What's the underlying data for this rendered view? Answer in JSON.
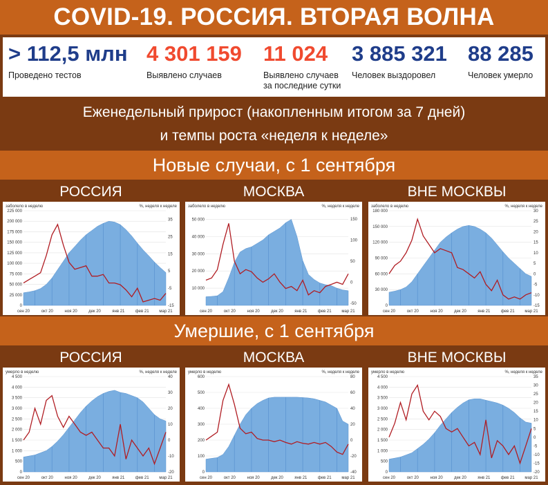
{
  "title": "COVID-19. РОССИЯ. ВТОРАЯ ВОЛНА",
  "stats": [
    {
      "value": "> 112,5 млн",
      "label": "Проведено тестов",
      "label2": "",
      "color": "#1f3d8a"
    },
    {
      "value": "4 301 159",
      "label": "Выявлено случаев",
      "label2": "",
      "color": "#f04a2f"
    },
    {
      "value": "11 024",
      "label": "Выявлено случаев",
      "label2": "за последние сутки",
      "color": "#f04a2f"
    },
    {
      "value": "3 885 321",
      "label": "Человек выздоровел",
      "label2": "",
      "color": "#1f3d8a"
    },
    {
      "value": "88 285",
      "label": "Человек умерло",
      "label2": "",
      "color": "#1f3d8a"
    }
  ],
  "subtitle_line1": "Еженедельный прирост (накопленным итогом за 7 дней)",
  "subtitle_line2": "и темпы роста «неделя к неделе»",
  "section_cases": "Новые случаи, с 1 сентября",
  "section_deaths": "Умершие, с 1 сентября",
  "region_headers": [
    "РОССИЯ",
    "МОСКВА",
    "ВНЕ МОСКВЫ"
  ],
  "colors": {
    "area": "#7aaee0",
    "line": "#b01c22",
    "orange": "#c5621b",
    "brown": "#7a3a12"
  },
  "chart_data": [
    {
      "type": "area",
      "region": "РОССИЯ",
      "metric": "cases",
      "left_label": "заболело в неделю",
      "right_label": "%, неделя к неделе",
      "x_ticks": [
        "сен 20",
        "окт 20",
        "ноя 20",
        "дек 20",
        "янв 21",
        "фев 21",
        "мар 21"
      ],
      "ylim": [
        0,
        225000
      ],
      "y_ticks": [
        "225 000",
        "200 000",
        "175 000",
        "150 000",
        "125 000",
        "100 000",
        "75 000",
        "50 000",
        "25 000",
        "0"
      ],
      "y_tick_values": [
        225000,
        200000,
        175000,
        150000,
        125000,
        100000,
        75000,
        50000,
        25000,
        0
      ],
      "y2lim": [
        -15,
        40
      ],
      "y2_ticks": [
        "35",
        "25",
        "15",
        "5",
        "-5",
        "-15"
      ],
      "y2_tick_values": [
        35,
        25,
        15,
        5,
        -5,
        -15
      ],
      "series": [
        {
          "kind": "area",
          "values": [
            30000,
            32000,
            35000,
            40000,
            50000,
            65000,
            85000,
            105000,
            125000,
            140000,
            155000,
            168000,
            178000,
            188000,
            195000,
            200000,
            198000,
            192000,
            180000,
            165000,
            148000,
            132000,
            118000,
            103000,
            90000,
            78000
          ]
        },
        {
          "kind": "line",
          "values": [
            -2,
            0,
            2,
            4,
            14,
            26,
            32,
            20,
            10,
            6,
            7,
            8,
            2,
            2,
            3,
            -2,
            -2,
            -3,
            -6,
            -10,
            -5,
            -13,
            -12,
            -11,
            -12,
            -8
          ]
        }
      ]
    },
    {
      "type": "area",
      "region": "МОСКВА",
      "metric": "cases",
      "left_label": "заболело в неделю",
      "right_label": "%, неделя к неделе",
      "x_ticks": [
        "сен 20",
        "окт 20",
        "ноя 20",
        "дек 20",
        "янв 21",
        "фев 21",
        "мар 21"
      ],
      "ylim": [
        0,
        55000
      ],
      "y_ticks": [
        "50 000",
        "40 000",
        "30 000",
        "20 000",
        "10 000"
      ],
      "y_tick_values": [
        50000,
        40000,
        30000,
        20000,
        10000
      ],
      "y2lim": [
        -55,
        170
      ],
      "y2_ticks": [
        "150",
        "100",
        "50",
        "0",
        "-50"
      ],
      "y2_tick_values": [
        150,
        100,
        50,
        0,
        -50
      ],
      "series": [
        {
          "kind": "area",
          "values": [
            5000,
            5200,
            5600,
            8000,
            16000,
            25000,
            31000,
            33000,
            34000,
            36000,
            38000,
            41000,
            43000,
            45000,
            48000,
            50000,
            40000,
            26000,
            18000,
            15000,
            13000,
            12000,
            11500,
            10000,
            9000,
            8500
          ]
        },
        {
          "kind": "line",
          "values": [
            5,
            10,
            30,
            90,
            140,
            50,
            20,
            30,
            25,
            10,
            0,
            8,
            20,
            0,
            -15,
            -10,
            -20,
            5,
            -30,
            -20,
            -25,
            -10,
            -5,
            0,
            -5,
            20
          ]
        }
      ]
    },
    {
      "type": "area",
      "region": "ВНЕ МОСКВЫ",
      "metric": "cases",
      "left_label": "заболело в неделю",
      "right_label": "%, неделя к неделе",
      "x_ticks": [
        "сен 20",
        "окт 20",
        "ноя 20",
        "дек 20",
        "янв 21",
        "фев 21",
        "мар 21"
      ],
      "ylim": [
        0,
        180000
      ],
      "y_ticks": [
        "180 000",
        "150 000",
        "120 000",
        "90 000",
        "60 000",
        "30 000",
        "0"
      ],
      "y_tick_values": [
        180000,
        150000,
        120000,
        90000,
        60000,
        30000,
        0
      ],
      "y2lim": [
        -15,
        30
      ],
      "y2_ticks": [
        "30",
        "25",
        "20",
        "15",
        "10",
        "5",
        "0",
        "-5",
        "-10",
        "-15"
      ],
      "y2_tick_values": [
        30,
        25,
        20,
        15,
        10,
        5,
        0,
        -5,
        -10,
        -15
      ],
      "series": [
        {
          "kind": "area",
          "values": [
            25000,
            27000,
            30000,
            35000,
            45000,
            60000,
            75000,
            90000,
            105000,
            120000,
            130000,
            138000,
            145000,
            150000,
            152000,
            150000,
            145000,
            138000,
            128000,
            115000,
            102000,
            90000,
            80000,
            70000,
            60000,
            55000
          ]
        },
        {
          "kind": "line",
          "values": [
            0,
            4,
            6,
            10,
            16,
            26,
            18,
            14,
            10,
            12,
            11,
            10,
            3,
            2,
            0,
            -2,
            1,
            -5,
            -8,
            -3,
            -10,
            -12,
            -11,
            -12,
            -10,
            -9
          ]
        }
      ]
    },
    {
      "type": "area",
      "region": "РОССИЯ",
      "metric": "deaths",
      "left_label": "умерло в неделю",
      "right_label": "%, неделя к неделе",
      "x_ticks": [
        "сен 20",
        "окт 20",
        "ноя 20",
        "дек 20",
        "янв 21",
        "фев 21",
        "мар 21"
      ],
      "ylim": [
        0,
        4500
      ],
      "y_ticks": [
        "4 500",
        "4 000",
        "3 500",
        "3 000",
        "2 500",
        "2 000",
        "1 500",
        "1 000",
        "500",
        "0"
      ],
      "y_tick_values": [
        4500,
        4000,
        3500,
        3000,
        2500,
        2000,
        1500,
        1000,
        500,
        0
      ],
      "y2lim": [
        -20,
        40
      ],
      "y2_ticks": [
        "40",
        "30",
        "20",
        "10",
        "0",
        "-10",
        "-20"
      ],
      "y2_tick_values": [
        40,
        30,
        20,
        10,
        0,
        -10,
        -20
      ],
      "series": [
        {
          "kind": "area",
          "values": [
            700,
            750,
            800,
            900,
            1000,
            1200,
            1450,
            1750,
            2100,
            2450,
            2800,
            3100,
            3350,
            3550,
            3700,
            3800,
            3850,
            3750,
            3700,
            3600,
            3500,
            3300,
            3000,
            2700,
            2500,
            2400
          ]
        },
        {
          "kind": "line",
          "values": [
            0,
            5,
            20,
            10,
            25,
            28,
            15,
            8,
            15,
            10,
            5,
            3,
            5,
            0,
            -5,
            -5,
            -10,
            10,
            -12,
            0,
            -5,
            -10,
            -5,
            -15,
            -5,
            5
          ]
        }
      ]
    },
    {
      "type": "area",
      "region": "МОСКВА",
      "metric": "deaths",
      "left_label": "умерло в неделю",
      "right_label": "%, неделя к неделе",
      "x_ticks": [
        "сен 20",
        "окт 20",
        "ноя 20",
        "дек 20",
        "янв 21",
        "фев 21",
        "мар 21"
      ],
      "ylim": [
        0,
        600
      ],
      "y_ticks": [
        "600",
        "500",
        "400",
        "300",
        "200",
        "100",
        "0"
      ],
      "y_tick_values": [
        600,
        500,
        400,
        300,
        200,
        100,
        0
      ],
      "y2lim": [
        -40,
        80
      ],
      "y2_ticks": [
        "80",
        "60",
        "40",
        "20",
        "0",
        "-20",
        "-40"
      ],
      "y2_tick_values": [
        80,
        60,
        40,
        20,
        0,
        -20,
        -40
      ],
      "series": [
        {
          "kind": "area",
          "values": [
            80,
            85,
            90,
            110,
            160,
            230,
            300,
            360,
            400,
            430,
            450,
            465,
            470,
            470,
            470,
            470,
            470,
            468,
            465,
            460,
            450,
            440,
            420,
            400,
            320,
            300
          ]
        },
        {
          "kind": "line",
          "values": [
            0,
            5,
            10,
            50,
            70,
            45,
            15,
            8,
            10,
            2,
            0,
            0,
            -2,
            0,
            -3,
            -5,
            -2,
            -4,
            -5,
            -3,
            -5,
            -3,
            -8,
            -15,
            -18,
            -5
          ]
        }
      ]
    },
    {
      "type": "area",
      "region": "ВНЕ МОСКВЫ",
      "metric": "deaths",
      "left_label": "умерло в неделю",
      "right_label": "%, неделя к неделе",
      "x_ticks": [
        "сен 20",
        "окт 20",
        "ноя 20",
        "дек 20",
        "янв 21",
        "фев 21",
        "мар 21"
      ],
      "ylim": [
        0,
        4500
      ],
      "y_ticks": [
        "4 500",
        "4 000",
        "3 500",
        "3 000",
        "2 500",
        "2 000",
        "1 500",
        "1 000",
        "500",
        "0"
      ],
      "y_tick_values": [
        4500,
        4000,
        3500,
        3000,
        2500,
        2000,
        1500,
        1000,
        500,
        0
      ],
      "y2lim": [
        -20,
        35
      ],
      "y2_ticks": [
        "35",
        "30",
        "25",
        "20",
        "15",
        "10",
        "5",
        "0",
        "-5",
        "-10",
        "-15",
        "-20"
      ],
      "y2_tick_values": [
        35,
        30,
        25,
        20,
        15,
        10,
        5,
        0,
        -5,
        -10,
        -15,
        -20
      ],
      "series": [
        {
          "kind": "area",
          "values": [
            600,
            650,
            700,
            800,
            900,
            1100,
            1300,
            1550,
            1850,
            2200,
            2500,
            2800,
            3050,
            3250,
            3400,
            3450,
            3450,
            3380,
            3320,
            3250,
            3150,
            3000,
            2800,
            2550,
            2350,
            2300
          ]
        },
        {
          "kind": "line",
          "values": [
            0,
            8,
            20,
            10,
            25,
            30,
            15,
            10,
            15,
            12,
            5,
            3,
            5,
            0,
            -5,
            -3,
            -10,
            10,
            -12,
            -2,
            -5,
            -10,
            -5,
            -15,
            -5,
            5
          ]
        }
      ]
    }
  ]
}
